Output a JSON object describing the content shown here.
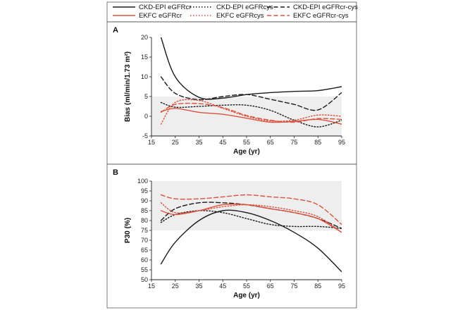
{
  "legend": [
    {
      "label": "CKD-EPI eGFRcr",
      "color": "#1a1a1a",
      "dash": "solid"
    },
    {
      "label": "CKD-EPI eGFRcys",
      "color": "#1a1a1a",
      "dash": "dotted"
    },
    {
      "label": "CKD-EPI eGFRcr-cys",
      "color": "#1a1a1a",
      "dash": "dashed"
    },
    {
      "label": "EKFC eGFRcr",
      "color": "#d9533f",
      "dash": "solid"
    },
    {
      "label": "EKFC eGFRcys",
      "color": "#d9533f",
      "dash": "dotted"
    },
    {
      "label": "EKFC eGFRcr-cys",
      "color": "#d9533f",
      "dash": "dashed"
    }
  ],
  "chart_data": [
    {
      "type": "line",
      "panel": "A",
      "xlabel": "Age (yr)",
      "ylabel": "Bias (ml/min/1.73 m²)",
      "xlim": [
        15,
        95
      ],
      "ylim": [
        -5,
        20
      ],
      "xticks": [
        15,
        25,
        35,
        45,
        55,
        65,
        75,
        85,
        95
      ],
      "yticks": [
        -5,
        0,
        5,
        10,
        15,
        20
      ],
      "shaded_band": [
        -5,
        5
      ],
      "x": [
        19,
        25,
        35,
        45,
        55,
        65,
        75,
        85,
        95
      ],
      "series": [
        {
          "name": "CKD-EPI eGFRcr",
          "values": [
            20,
            10,
            4.8,
            4.6,
            5.5,
            6.0,
            6.3,
            6.5,
            7.5
          ]
        },
        {
          "name": "CKD-EPI eGFRcys",
          "values": [
            3.5,
            2.3,
            2.5,
            2.8,
            2.8,
            1.5,
            -1.0,
            -2.7,
            -1.0
          ]
        },
        {
          "name": "CKD-EPI eGFRcr-cys",
          "values": [
            10,
            5.8,
            4.2,
            5.0,
            5.5,
            4.3,
            3.0,
            1.6,
            6.0
          ]
        },
        {
          "name": "EKFC eGFRcr",
          "values": [
            1.2,
            2.0,
            1.0,
            0.5,
            -0.5,
            -1.5,
            -1.3,
            -0.8,
            -2.0
          ]
        },
        {
          "name": "EKFC eGFRcys",
          "values": [
            -2.0,
            3.5,
            4.0,
            2.0,
            0.0,
            -1.2,
            -1.0,
            0.3,
            0.0
          ]
        },
        {
          "name": "EKFC eGFRcr-cys",
          "values": [
            1.0,
            3.0,
            3.2,
            2.2,
            0.2,
            -1.0,
            -1.5,
            -0.6,
            -0.8
          ]
        }
      ]
    },
    {
      "type": "line",
      "panel": "B",
      "xlabel": "Age (yr)",
      "ylabel": "P30 (%)",
      "xlim": [
        15,
        95
      ],
      "ylim": [
        50,
        100
      ],
      "xticks": [
        15,
        25,
        35,
        45,
        55,
        65,
        75,
        85,
        95
      ],
      "yticks": [
        50,
        55,
        60,
        65,
        70,
        75,
        80,
        85,
        90,
        95,
        100
      ],
      "shaded_band": [
        75,
        100
      ],
      "x": [
        19,
        25,
        35,
        45,
        55,
        65,
        75,
        85,
        95
      ],
      "series": [
        {
          "name": "CKD-EPI eGFRcr",
          "values": [
            58,
            69,
            80,
            85,
            84,
            80,
            74,
            66,
            54
          ]
        },
        {
          "name": "CKD-EPI eGFRcys",
          "values": [
            79,
            83,
            85,
            84,
            81,
            78,
            77,
            77,
            76
          ]
        },
        {
          "name": "CKD-EPI eGFRcr-cys",
          "values": [
            80,
            86,
            89,
            89,
            88,
            86,
            84,
            81,
            76
          ]
        },
        {
          "name": "EKFC eGFRcr",
          "values": [
            85,
            83,
            85,
            88,
            88,
            86,
            84,
            81,
            74
          ]
        },
        {
          "name": "EKFC eGFRcys",
          "values": [
            89,
            84,
            85,
            87,
            88,
            87,
            85,
            82,
            74
          ]
        },
        {
          "name": "EKFC eGFRcr-cys",
          "values": [
            93,
            91,
            91,
            92,
            93,
            92,
            91,
            88,
            78
          ]
        }
      ]
    }
  ]
}
